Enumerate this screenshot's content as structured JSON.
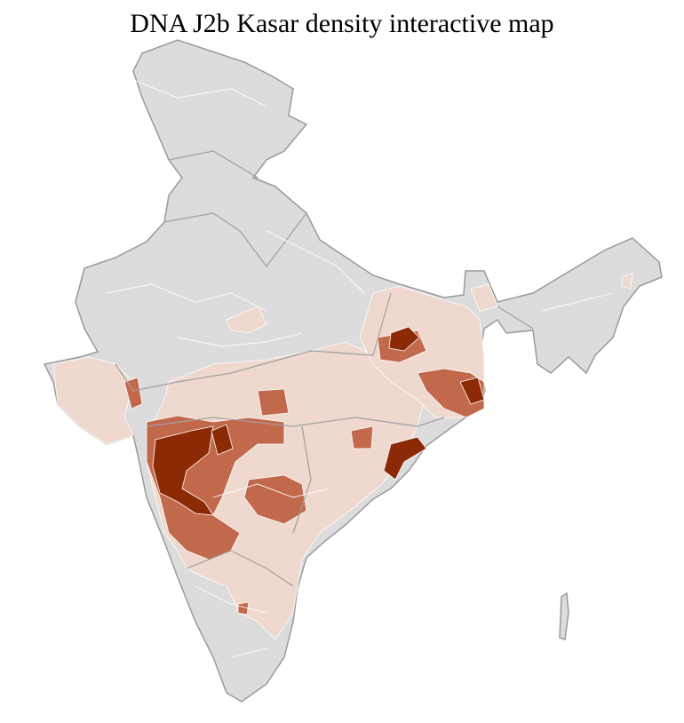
{
  "title": "DNA J2b Kasar density interactive map"
}
